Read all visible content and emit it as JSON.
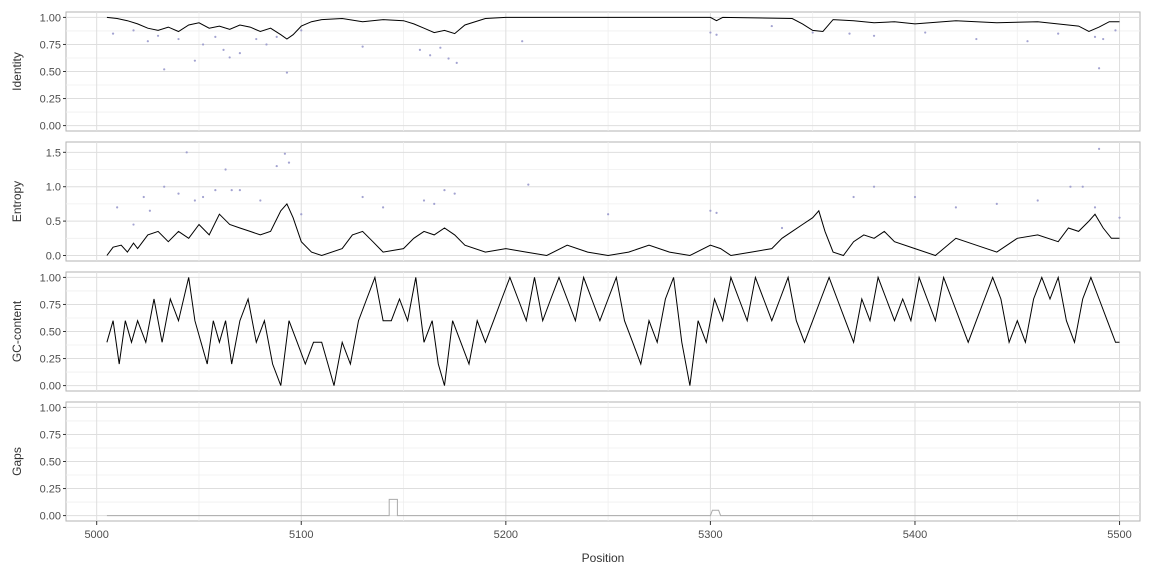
{
  "figure": {
    "x_axis_label": "Position",
    "x_ticks": [
      "5000",
      "5100",
      "5200",
      "5300",
      "5400",
      "5500"
    ]
  },
  "chart_data": [
    {
      "type": "scatter+line",
      "ylabel": "Identity",
      "xlim": [
        4985,
        5510
      ],
      "ylim": [
        -0.05,
        1.05
      ],
      "yticks": [
        "0.00",
        "0.25",
        "0.50",
        "0.75",
        "1.00"
      ],
      "grid": true,
      "point_color": "#9999cc",
      "line_color": "#000000",
      "series": [
        {
          "name": "",
          "kind": "points",
          "x": [
            5008,
            5018,
            5025,
            5030,
            5033,
            5040,
            5048,
            5052,
            5058,
            5062,
            5065,
            5070,
            5078,
            5083,
            5088,
            5093,
            5100,
            5130,
            5158,
            5163,
            5168,
            5172,
            5176,
            5208,
            5300,
            5303,
            5330,
            5350,
            5368,
            5380,
            5405,
            5430,
            5455,
            5470,
            5488,
            5490,
            5492,
            5498
          ],
          "y": [
            0.85,
            0.88,
            0.78,
            0.83,
            0.52,
            0.8,
            0.6,
            0.75,
            0.82,
            0.7,
            0.63,
            0.67,
            0.8,
            0.75,
            0.82,
            0.49,
            0.88,
            0.73,
            0.7,
            0.65,
            0.72,
            0.62,
            0.58,
            0.78,
            0.86,
            0.84,
            0.92,
            0.86,
            0.85,
            0.83,
            0.86,
            0.8,
            0.78,
            0.85,
            0.82,
            0.53,
            0.8,
            0.88
          ]
        },
        {
          "name": "",
          "kind": "line",
          "x": [
            5005,
            5010,
            5015,
            5020,
            5025,
            5030,
            5035,
            5040,
            5045,
            5050,
            5055,
            5060,
            5065,
            5070,
            5075,
            5080,
            5085,
            5090,
            5093,
            5096,
            5100,
            5105,
            5110,
            5120,
            5130,
            5140,
            5150,
            5155,
            5160,
            5165,
            5170,
            5175,
            5180,
            5190,
            5200,
            5250,
            5300,
            5303,
            5306,
            5340,
            5345,
            5350,
            5355,
            5360,
            5370,
            5380,
            5390,
            5400,
            5420,
            5440,
            5460,
            5480,
            5485,
            5490,
            5495,
            5500
          ],
          "y": [
            1.0,
            0.99,
            0.97,
            0.94,
            0.9,
            0.88,
            0.91,
            0.87,
            0.93,
            0.95,
            0.9,
            0.92,
            0.89,
            0.93,
            0.91,
            0.87,
            0.9,
            0.84,
            0.8,
            0.84,
            0.92,
            0.96,
            0.98,
            0.99,
            0.96,
            0.98,
            0.97,
            0.94,
            0.9,
            0.86,
            0.88,
            0.85,
            0.93,
            0.99,
            1.0,
            1.0,
            1.0,
            0.97,
            1.0,
            0.99,
            0.94,
            0.88,
            0.87,
            0.98,
            0.97,
            0.95,
            0.96,
            0.94,
            0.97,
            0.95,
            0.96,
            0.92,
            0.87,
            0.91,
            0.96,
            0.96
          ]
        }
      ]
    },
    {
      "type": "scatter+line",
      "ylabel": "Entropy",
      "xlim": [
        4985,
        5510
      ],
      "ylim": [
        -0.08,
        1.65
      ],
      "yticks": [
        "0.0",
        "0.5",
        "1.0",
        "1.5"
      ],
      "grid": true,
      "point_color": "#9999cc",
      "line_color": "#000000",
      "series": [
        {
          "name": "",
          "kind": "points",
          "x": [
            5010,
            5018,
            5023,
            5026,
            5033,
            5040,
            5044,
            5048,
            5052,
            5058,
            5063,
            5066,
            5070,
            5080,
            5088,
            5092,
            5094,
            5100,
            5130,
            5140,
            5160,
            5165,
            5170,
            5175,
            5211,
            5250,
            5300,
            5303,
            5335,
            5370,
            5380,
            5400,
            5420,
            5440,
            5460,
            5476,
            5482,
            5488,
            5490,
            5500
          ],
          "y": [
            0.7,
            0.45,
            0.85,
            0.65,
            1.0,
            0.9,
            1.5,
            0.8,
            0.85,
            0.95,
            1.25,
            0.95,
            0.95,
            0.8,
            1.3,
            1.48,
            1.35,
            0.6,
            0.85,
            0.7,
            0.8,
            0.75,
            0.95,
            0.9,
            1.03,
            0.6,
            0.65,
            0.62,
            0.4,
            0.85,
            1.0,
            0.85,
            0.7,
            0.75,
            0.8,
            1.0,
            1.0,
            0.7,
            1.55,
            0.55
          ]
        },
        {
          "name": "",
          "kind": "line",
          "x": [
            5005,
            5008,
            5012,
            5015,
            5018,
            5020,
            5025,
            5030,
            5035,
            5040,
            5045,
            5050,
            5055,
            5060,
            5065,
            5070,
            5075,
            5080,
            5085,
            5090,
            5093,
            5096,
            5100,
            5105,
            5110,
            5120,
            5125,
            5130,
            5135,
            5140,
            5150,
            5155,
            5160,
            5165,
            5170,
            5175,
            5180,
            5190,
            5200,
            5210,
            5220,
            5230,
            5240,
            5250,
            5260,
            5270,
            5280,
            5290,
            5300,
            5305,
            5310,
            5320,
            5330,
            5335,
            5340,
            5345,
            5350,
            5353,
            5356,
            5360,
            5365,
            5370,
            5375,
            5380,
            5385,
            5390,
            5400,
            5410,
            5420,
            5430,
            5440,
            5450,
            5460,
            5470,
            5475,
            5480,
            5485,
            5488,
            5492,
            5496,
            5500
          ],
          "y": [
            0.0,
            0.12,
            0.15,
            0.05,
            0.18,
            0.1,
            0.3,
            0.35,
            0.2,
            0.35,
            0.25,
            0.45,
            0.3,
            0.6,
            0.45,
            0.4,
            0.35,
            0.3,
            0.35,
            0.65,
            0.75,
            0.55,
            0.2,
            0.05,
            0.0,
            0.1,
            0.3,
            0.35,
            0.2,
            0.05,
            0.1,
            0.25,
            0.35,
            0.3,
            0.4,
            0.3,
            0.15,
            0.05,
            0.1,
            0.05,
            0.0,
            0.15,
            0.05,
            0.0,
            0.05,
            0.15,
            0.05,
            0.0,
            0.15,
            0.1,
            0.0,
            0.05,
            0.1,
            0.25,
            0.35,
            0.45,
            0.55,
            0.65,
            0.35,
            0.05,
            0.0,
            0.2,
            0.3,
            0.25,
            0.35,
            0.2,
            0.1,
            0.0,
            0.25,
            0.15,
            0.05,
            0.25,
            0.3,
            0.2,
            0.4,
            0.35,
            0.5,
            0.6,
            0.4,
            0.25,
            0.25
          ]
        }
      ]
    },
    {
      "type": "line",
      "ylabel": "GC-content",
      "xlim": [
        4985,
        5510
      ],
      "ylim": [
        -0.05,
        1.05
      ],
      "yticks": [
        "0.00",
        "0.25",
        "0.50",
        "0.75",
        "1.00"
      ],
      "grid": true,
      "line_color": "#000000",
      "series": [
        {
          "name": "",
          "x": [
            5005,
            5008,
            5011,
            5014,
            5017,
            5020,
            5024,
            5028,
            5032,
            5036,
            5040,
            5045,
            5048,
            5051,
            5054,
            5057,
            5060,
            5063,
            5066,
            5070,
            5074,
            5078,
            5082,
            5086,
            5090,
            5094,
            5098,
            5102,
            5106,
            5110,
            5113,
            5116,
            5120,
            5124,
            5128,
            5132,
            5136,
            5140,
            5144,
            5148,
            5152,
            5156,
            5160,
            5164,
            5167,
            5170,
            5174,
            5178,
            5182,
            5186,
            5190,
            5194,
            5198,
            5202,
            5206,
            5210,
            5214,
            5218,
            5222,
            5226,
            5230,
            5234,
            5238,
            5242,
            5246,
            5250,
            5254,
            5258,
            5262,
            5266,
            5270,
            5274,
            5278,
            5282,
            5286,
            5290,
            5294,
            5298,
            5302,
            5306,
            5310,
            5314,
            5318,
            5322,
            5326,
            5330,
            5334,
            5338,
            5342,
            5346,
            5350,
            5354,
            5358,
            5362,
            5366,
            5370,
            5374,
            5378,
            5382,
            5386,
            5390,
            5394,
            5398,
            5402,
            5406,
            5410,
            5414,
            5418,
            5422,
            5426,
            5430,
            5434,
            5438,
            5442,
            5446,
            5450,
            5454,
            5458,
            5462,
            5466,
            5470,
            5474,
            5478,
            5482,
            5486,
            5490,
            5494,
            5498,
            5500
          ],
          "y": [
            0.4,
            0.6,
            0.2,
            0.6,
            0.4,
            0.6,
            0.4,
            0.8,
            0.4,
            0.8,
            0.6,
            1.0,
            0.6,
            0.4,
            0.2,
            0.6,
            0.4,
            0.6,
            0.2,
            0.6,
            0.8,
            0.4,
            0.6,
            0.2,
            0.0,
            0.6,
            0.4,
            0.2,
            0.4,
            0.4,
            0.2,
            0.0,
            0.4,
            0.2,
            0.6,
            0.8,
            1.0,
            0.6,
            0.6,
            0.8,
            0.6,
            1.0,
            0.4,
            0.6,
            0.2,
            0.0,
            0.6,
            0.4,
            0.2,
            0.6,
            0.4,
            0.6,
            0.8,
            1.0,
            0.8,
            0.6,
            1.0,
            0.6,
            0.8,
            1.0,
            0.8,
            0.6,
            1.0,
            0.8,
            0.6,
            0.8,
            1.0,
            0.6,
            0.4,
            0.2,
            0.6,
            0.4,
            0.8,
            1.0,
            0.4,
            0.0,
            0.6,
            0.4,
            0.8,
            0.6,
            1.0,
            0.8,
            0.6,
            1.0,
            0.8,
            0.6,
            0.8,
            1.0,
            0.6,
            0.4,
            0.6,
            0.8,
            1.0,
            0.8,
            0.6,
            0.4,
            0.8,
            0.6,
            1.0,
            0.8,
            0.6,
            0.8,
            0.6,
            1.0,
            0.8,
            0.6,
            1.0,
            0.8,
            0.6,
            0.4,
            0.6,
            0.8,
            1.0,
            0.8,
            0.4,
            0.6,
            0.4,
            0.8,
            1.0,
            0.8,
            1.0,
            0.6,
            0.4,
            0.8,
            1.0,
            0.8,
            0.6,
            0.4,
            0.4
          ]
        }
      ]
    },
    {
      "type": "line",
      "ylabel": "Gaps",
      "xlim": [
        4985,
        5510
      ],
      "ylim": [
        -0.05,
        1.05
      ],
      "yticks": [
        "0.00",
        "0.25",
        "0.50",
        "0.75",
        "1.00"
      ],
      "grid": true,
      "line_color": "#aaaaaa",
      "series": [
        {
          "name": "",
          "x": [
            5005,
            5143,
            5143,
            5147,
            5147,
            5300,
            5301,
            5304,
            5305,
            5500
          ],
          "y": [
            0.0,
            0.0,
            0.15,
            0.15,
            0.0,
            0.0,
            0.05,
            0.05,
            0.0,
            0.0
          ]
        }
      ]
    }
  ]
}
